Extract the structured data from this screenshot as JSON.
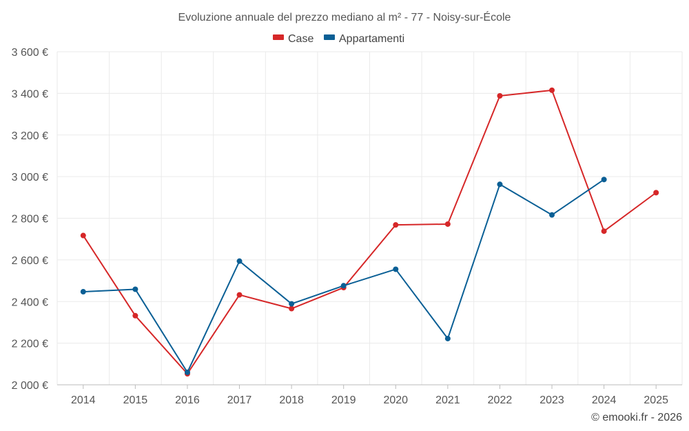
{
  "chart_data": {
    "type": "line",
    "title": "Evoluzione annuale del prezzo mediano al m² - 77 - Noisy-sur-École",
    "xlabel": "",
    "ylabel": "",
    "categories": [
      "2014",
      "2015",
      "2016",
      "2017",
      "2018",
      "2019",
      "2020",
      "2021",
      "2022",
      "2023",
      "2024",
      "2025"
    ],
    "ylim": [
      2000,
      3600
    ],
    "yticks": [
      2000,
      2200,
      2400,
      2600,
      2800,
      3000,
      3200,
      3400,
      3600
    ],
    "ytick_labels": [
      "2 000 €",
      "2 200 €",
      "2 400 €",
      "2 600 €",
      "2 800 €",
      "3 000 €",
      "3 200 €",
      "3 400 €",
      "3 600 €"
    ],
    "grid": true,
    "legend_position": "top-center",
    "series": [
      {
        "name": "Case",
        "color": "#d62728",
        "values": [
          2717,
          2332,
          2053,
          2432,
          2366,
          2467,
          2768,
          2772,
          3388,
          3415,
          2738,
          2923
        ]
      },
      {
        "name": "Appartamenti",
        "color": "#0a5f95",
        "values": [
          2447,
          2459,
          2060,
          2594,
          2389,
          2476,
          2555,
          2222,
          2963,
          2816,
          2986,
          null
        ]
      }
    ]
  },
  "credit": "© emooki.fr - 2026"
}
